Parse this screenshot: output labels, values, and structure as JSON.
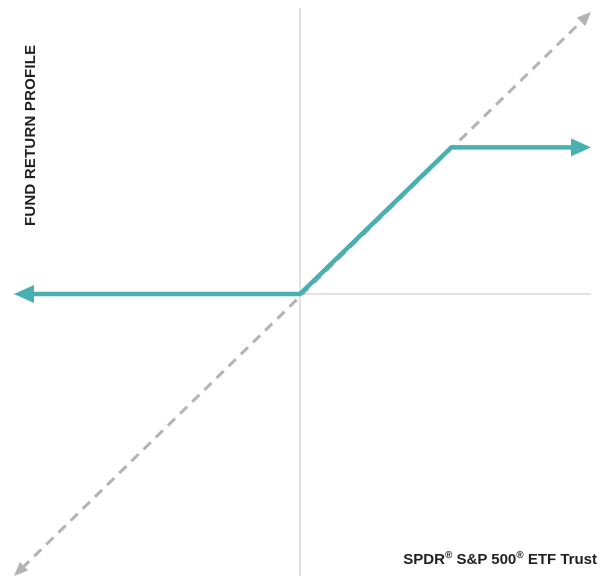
{
  "chart_data": {
    "type": "line",
    "ylabel": "FUND RETURN PROFILE",
    "xlabel_parts": [
      "SPDR",
      "®",
      " S&P 500",
      "®",
      " ETF Trust"
    ],
    "xlim": [
      -1,
      1
    ],
    "ylim": [
      -1,
      1
    ],
    "grid": false,
    "series": [
      {
        "style": "solid",
        "color": "#48b0b0",
        "x": [
          -1,
          0,
          0.52,
          1
        ],
        "y": [
          0,
          0,
          0.52,
          0.52
        ],
        "arrow_left": true,
        "arrow_right": true
      },
      {
        "style": "dashed",
        "color": "#b3b3b3",
        "x": [
          -1,
          1
        ],
        "y": [
          -1,
          1
        ],
        "arrow_left": true,
        "arrow_right": true
      }
    ]
  }
}
